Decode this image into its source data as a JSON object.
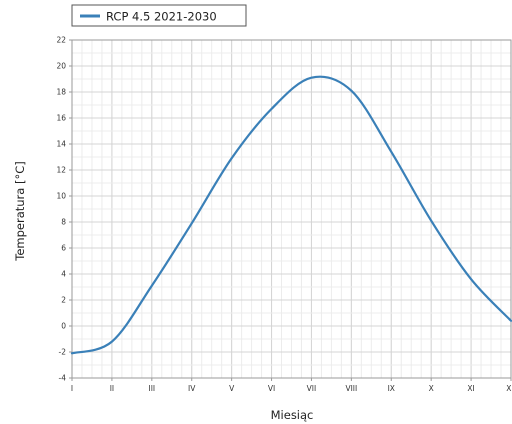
{
  "chart_data": {
    "type": "line",
    "xlabel": "Miesiąc",
    "ylabel": "Temperatura [°C]",
    "categories": [
      "I",
      "II",
      "III",
      "IV",
      "V",
      "VI",
      "VII",
      "VIII",
      "IX",
      "X",
      "XI",
      "XII"
    ],
    "ylim": [
      -4,
      22
    ],
    "yticks": [
      -4,
      -2,
      0,
      2,
      4,
      6,
      8,
      10,
      12,
      14,
      16,
      18,
      20,
      22
    ],
    "grid": true,
    "legend_position": "top-left",
    "series": [
      {
        "name": "RCP 4.5 2021-2030",
        "color": "#3a80b8",
        "values": [
          -2.1,
          -1.2,
          3.1,
          7.9,
          12.9,
          16.7,
          19.1,
          18.1,
          13.4,
          8.1,
          3.6,
          0.4
        ]
      }
    ]
  }
}
